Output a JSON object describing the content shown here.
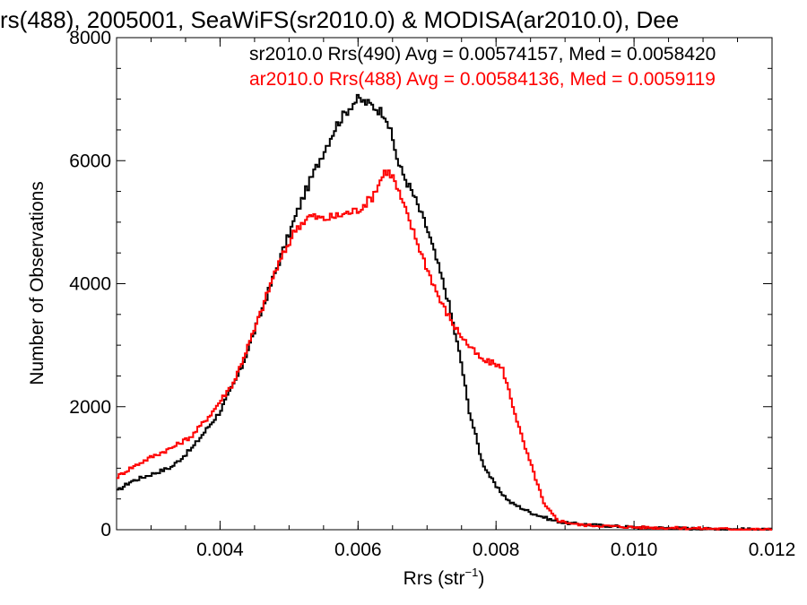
{
  "chart_data": {
    "type": "line",
    "title": "rs(488), 2005001, SeaWiFS(sr2010.0) & MODISA(ar2010.0), Dee",
    "xlabel_main": "Rrs (str",
    "xlabel_sup": "−1",
    "xlabel_close": ")",
    "ylabel": "Number of Observations",
    "xlim": [
      0.0025,
      0.012
    ],
    "ylim": [
      0,
      8000
    ],
    "x_ticks": [
      0.004,
      0.006,
      0.008,
      0.01,
      0.012
    ],
    "x_tick_labels": [
      "0.004",
      "0.006",
      "0.008",
      "0.010",
      "0.012"
    ],
    "y_ticks": [
      0,
      2000,
      4000,
      6000,
      8000
    ],
    "y_tick_labels": [
      "0",
      "2000",
      "4000",
      "6000",
      "8000"
    ],
    "legend_position": "top-right",
    "series": [
      {
        "name": "sr2010.0 Rrs(490) Avg = 0.00574157, Med = 0.0058420",
        "color": "#000000",
        "points": [
          [
            0.0025,
            620
          ],
          [
            0.0027,
            780
          ],
          [
            0.003,
            900
          ],
          [
            0.0033,
            1020
          ],
          [
            0.0036,
            1330
          ],
          [
            0.004,
            1920
          ],
          [
            0.0043,
            2600
          ],
          [
            0.0046,
            3550
          ],
          [
            0.0049,
            4500
          ],
          [
            0.0052,
            5400
          ],
          [
            0.0055,
            6150
          ],
          [
            0.0057,
            6600
          ],
          [
            0.0059,
            6900
          ],
          [
            0.006,
            7000
          ],
          [
            0.0062,
            6900
          ],
          [
            0.0064,
            6750
          ],
          [
            0.0065,
            6350
          ],
          [
            0.0066,
            5900
          ],
          [
            0.0068,
            5450
          ],
          [
            0.007,
            4900
          ],
          [
            0.0072,
            4150
          ],
          [
            0.0073,
            3750
          ],
          [
            0.0075,
            2700
          ],
          [
            0.0076,
            2000
          ],
          [
            0.0078,
            1100
          ],
          [
            0.008,
            700
          ],
          [
            0.0082,
            450
          ],
          [
            0.0085,
            280
          ],
          [
            0.0088,
            160
          ],
          [
            0.009,
            110
          ],
          [
            0.0095,
            70
          ],
          [
            0.01,
            40
          ],
          [
            0.011,
            15
          ],
          [
            0.012,
            0
          ]
        ]
      },
      {
        "name": "ar2010.0 Rrs(488) Avg = 0.00584136, Med = 0.0059119",
        "color": "#ff0000",
        "points": [
          [
            0.0025,
            850
          ],
          [
            0.0027,
            1000
          ],
          [
            0.003,
            1180
          ],
          [
            0.0033,
            1330
          ],
          [
            0.0036,
            1530
          ],
          [
            0.0039,
            1930
          ],
          [
            0.0042,
            2400
          ],
          [
            0.0045,
            3250
          ],
          [
            0.0048,
            4200
          ],
          [
            0.0051,
            4900
          ],
          [
            0.0053,
            5100
          ],
          [
            0.0055,
            5050
          ],
          [
            0.0057,
            5100
          ],
          [
            0.006,
            5200
          ],
          [
            0.0062,
            5400
          ],
          [
            0.0064,
            5850
          ],
          [
            0.0065,
            5750
          ],
          [
            0.0066,
            5450
          ],
          [
            0.0068,
            4850
          ],
          [
            0.007,
            4250
          ],
          [
            0.0072,
            3700
          ],
          [
            0.0074,
            3300
          ],
          [
            0.0076,
            3000
          ],
          [
            0.0078,
            2750
          ],
          [
            0.008,
            2700
          ],
          [
            0.0081,
            2600
          ],
          [
            0.0082,
            2200
          ],
          [
            0.0083,
            1800
          ],
          [
            0.0084,
            1400
          ],
          [
            0.0086,
            750
          ],
          [
            0.0087,
            400
          ],
          [
            0.0089,
            150
          ],
          [
            0.0092,
            80
          ],
          [
            0.01,
            40
          ],
          [
            0.011,
            20
          ],
          [
            0.012,
            0
          ]
        ]
      }
    ]
  }
}
